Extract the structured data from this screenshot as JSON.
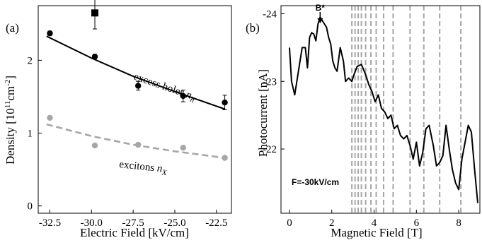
{
  "chart_data": [
    {
      "type": "scatter",
      "panel_label": "(a)",
      "xlabel": "Electric Field [kV/cm]",
      "ylabel_parts": {
        "main": "Density [10",
        "sup1": "11",
        "mid": "cm",
        "sup2": "-2",
        "end": "]"
      },
      "xlim": [
        -33.2,
        -21.6
      ],
      "ylim": [
        -0.1,
        2.75
      ],
      "x_ticks": [
        -32.5,
        -30.0,
        -27.5,
        -25.0,
        -22.5
      ],
      "x_tick_labels": [
        "-32.5",
        "-30.0",
        "-27.5",
        "-25.0",
        "-22.5"
      ],
      "y_ticks": [
        0,
        1,
        2
      ],
      "y_tick_labels": [
        "0",
        "1",
        "2"
      ],
      "grid": false,
      "series": [
        {
          "key": "holes",
          "label_parts": {
            "text": "excess holes ",
            "var": "n",
            "sub": "h"
          },
          "color": "#000000",
          "points": [
            {
              "x": -32.5,
              "y": 2.37,
              "err": 0.03
            },
            {
              "x": -29.8,
              "y": 2.05,
              "err": 0.03
            },
            {
              "x": -27.2,
              "y": 1.65,
              "err": 0.06
            },
            {
              "x": -24.5,
              "y": 1.51,
              "err": 0.08
            },
            {
              "x": -22.0,
              "y": 1.42,
              "err": 0.1
            }
          ],
          "fit": {
            "x": [
              -32.7,
              -30.0,
              -27.5,
              -25.0,
              -22.0
            ],
            "y": [
              2.33,
              2.03,
              1.78,
              1.57,
              1.33
            ]
          }
        },
        {
          "key": "excitons",
          "label_parts": {
            "text": "excitons ",
            "var": "n",
            "sub": "X"
          },
          "color": "#a6a6a6",
          "points": [
            {
              "x": -32.5,
              "y": 1.21
            },
            {
              "x": -29.8,
              "y": 0.83
            },
            {
              "x": -27.2,
              "y": 0.84
            },
            {
              "x": -24.5,
              "y": 0.8
            },
            {
              "x": -22.0,
              "y": 0.66
            }
          ],
          "fit": {
            "x": [
              -32.7,
              -30.0,
              -27.5,
              -25.0,
              -22.0
            ],
            "y": [
              1.12,
              0.96,
              0.84,
              0.75,
              0.66
            ]
          }
        }
      ],
      "square_point": {
        "x": -29.8,
        "y": 2.65,
        "err": 0.22,
        "color": "#000000"
      }
    },
    {
      "type": "line",
      "panel_label": "(b)",
      "xlabel": "Magnetic Field [T]",
      "ylabel": "Photocurrent [nA]",
      "xlim": [
        -0.4,
        9.0
      ],
      "ylim": [
        -21.05,
        -24.12
      ],
      "x_ticks": [
        0,
        2,
        4,
        6,
        8
      ],
      "x_tick_labels": [
        "0",
        "2",
        "4",
        "6",
        "8"
      ],
      "y_ticks": [
        -22,
        -23,
        -24
      ],
      "y_tick_labels": [
        "-22",
        "-23",
        "-24"
      ],
      "grid": false,
      "annotation_field": "F=-30kV/cm",
      "annotation_bstar": "B*",
      "bstar_x": 1.45,
      "dashed_lines_x": [
        2.95,
        3.1,
        3.25,
        3.4,
        3.6,
        3.85,
        4.1,
        4.45,
        4.9,
        5.7,
        6.35,
        7.1,
        8.1
      ],
      "dashed_color": "#a6a6a6",
      "series": [
        {
          "color": "#000000",
          "x": [
            0.0,
            0.1,
            0.25,
            0.45,
            0.6,
            0.75,
            0.85,
            0.95,
            1.05,
            1.15,
            1.25,
            1.35,
            1.45,
            1.55,
            1.65,
            1.75,
            1.85,
            1.95,
            2.05,
            2.15,
            2.25,
            2.4,
            2.55,
            2.65,
            2.8,
            2.95,
            3.05,
            3.2,
            3.4,
            3.6,
            3.75,
            3.9,
            4.05,
            4.2,
            4.35,
            4.5,
            4.65,
            4.8,
            4.95,
            5.1,
            5.25,
            5.4,
            5.55,
            5.7,
            5.85,
            6.0,
            6.15,
            6.3,
            6.45,
            6.6,
            6.8,
            6.95,
            7.1,
            7.25,
            7.4,
            7.55,
            7.7,
            7.85,
            8.0,
            8.15,
            8.3,
            8.45,
            8.6,
            8.75,
            8.9
          ],
          "y": [
            -23.5,
            -23.0,
            -22.8,
            -23.2,
            -23.5,
            -23.5,
            -23.2,
            -23.65,
            -23.72,
            -23.7,
            -23.6,
            -23.85,
            -23.95,
            -23.9,
            -23.85,
            -23.8,
            -23.65,
            -23.55,
            -23.3,
            -23.2,
            -23.15,
            -23.5,
            -23.3,
            -23.0,
            -23.05,
            -23.0,
            -23.1,
            -23.22,
            -23.25,
            -23.1,
            -22.95,
            -22.85,
            -22.7,
            -22.8,
            -22.6,
            -22.55,
            -22.45,
            -22.5,
            -22.3,
            -22.35,
            -22.2,
            -22.15,
            -22.2,
            -22.05,
            -21.85,
            -22.1,
            -21.75,
            -21.95,
            -22.3,
            -22.35,
            -22.05,
            -21.75,
            -21.8,
            -21.9,
            -22.35,
            -22.0,
            -21.7,
            -21.5,
            -21.4,
            -21.85,
            -22.1,
            -22.35,
            -22.25,
            -21.7,
            -21.2
          ]
        }
      ]
    }
  ]
}
